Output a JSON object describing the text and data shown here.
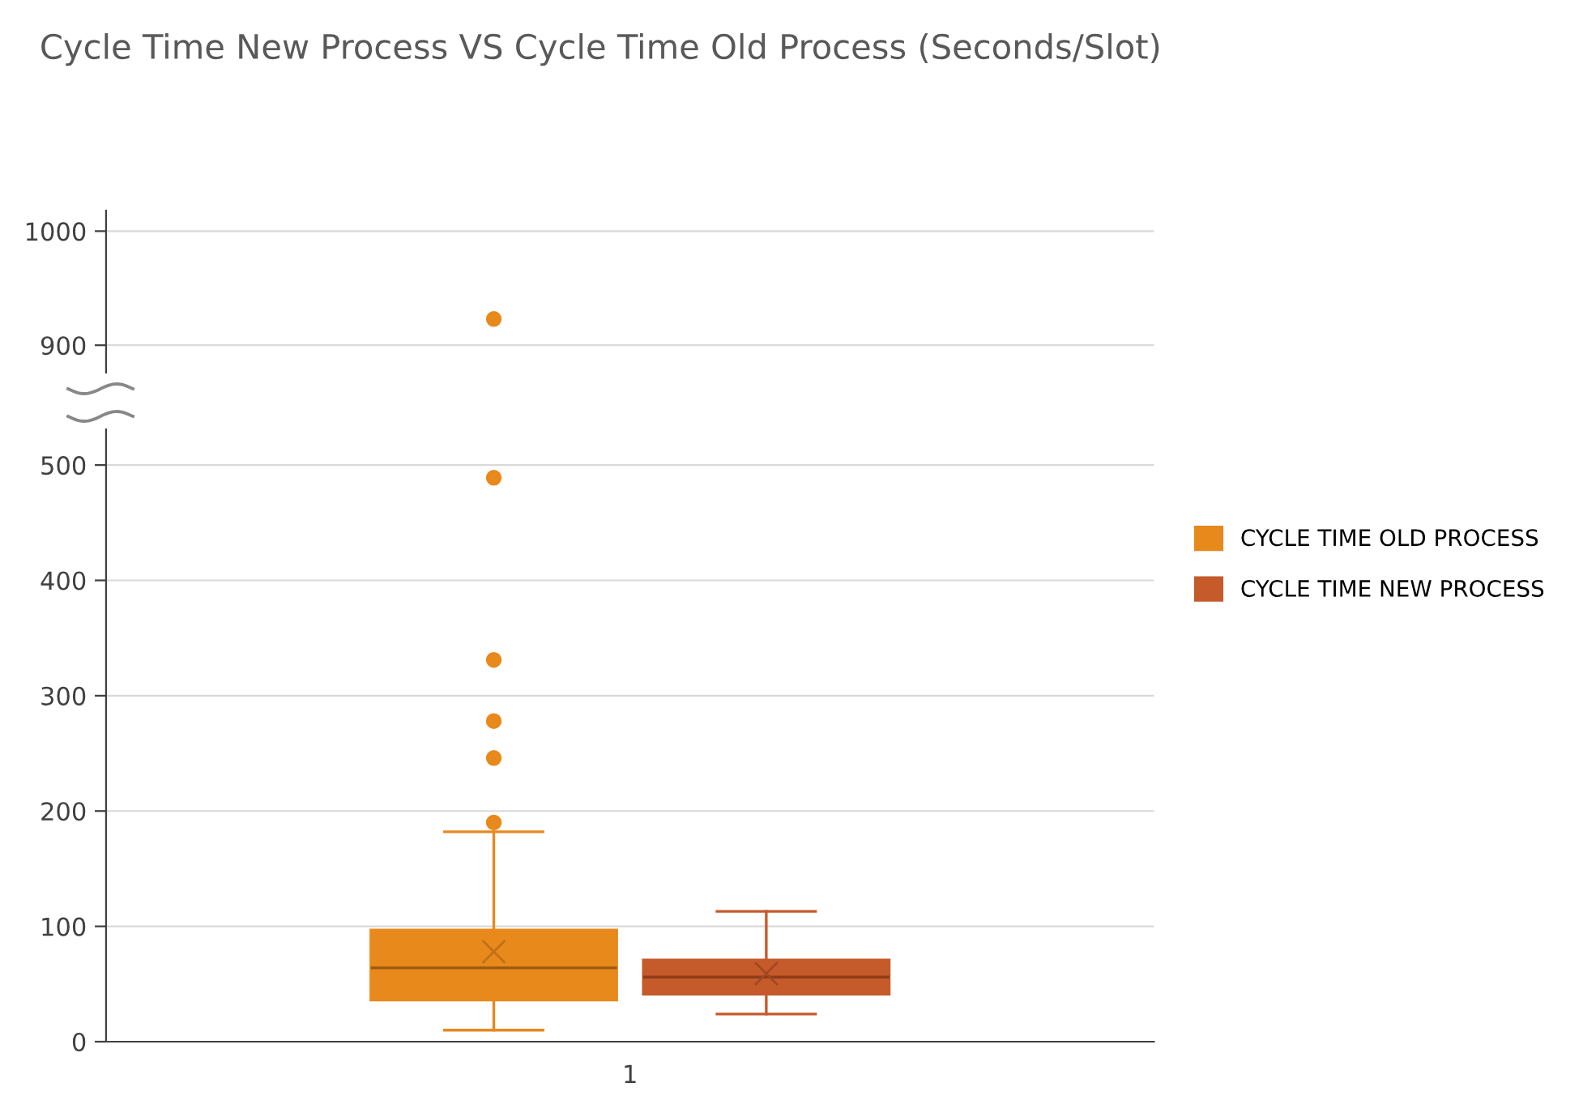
{
  "chart_data": [
    {
      "type": "scatter",
      "title": "Cycle Time New Process VS Cycle Time Old Process (Seconds/Slot)",
      "categories": [
        null
      ],
      "series": [
        {
          "color": "#e8891c",
          "values": [
            923
          ]
        },
        {
          "color": "#c55a2b",
          "values": [
            null
          ]
        }
      ],
      "ylim": [
        876,
        1018
      ],
      "yticks": [
        900,
        1000
      ],
      "grid": "y",
      "tick_labels": "y",
      "marker": "circle"
    },
    {
      "type": "box",
      "categories": [
        "1"
      ],
      "series": [
        {
          "name": "CYCLE TIME OLD PROCESS",
          "color": "#e8891c",
          "boxes": [
            {
              "low": 10,
              "q1": 36,
              "median": 64,
              "q3": 97,
              "high": 182,
              "mean": 78,
              "outliers": [
                190,
                246,
                278,
                331,
                489
              ]
            }
          ]
        },
        {
          "name": "CYCLE TIME NEW PROCESS",
          "color": "#c55a2b",
          "boxes": [
            {
              "low": 24,
              "q1": 41,
              "median": 56,
              "q3": 71,
              "high": 113,
              "mean": 59
            }
          ]
        }
      ],
      "ylim": [
        0,
        531
      ],
      "yticks": [
        0,
        100,
        200,
        300,
        400,
        500
      ],
      "grid": "y",
      "legend": "right"
    }
  ]
}
